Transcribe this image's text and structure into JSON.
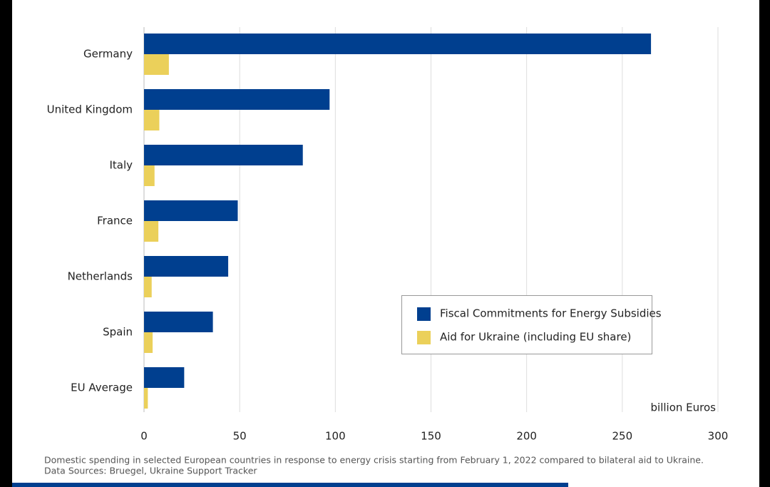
{
  "chart_data": {
    "type": "bar",
    "orientation": "horizontal",
    "categories": [
      "Germany",
      "United Kingdom",
      "Italy",
      "France",
      "Netherlands",
      "Spain",
      "EU Average"
    ],
    "series": [
      {
        "name": "Fiscal Commitments for Energy Subsidies",
        "color": "#003f8f",
        "values": [
          265,
          97,
          83,
          49,
          44,
          36,
          21
        ]
      },
      {
        "name": "Aid for Ukraine (including EU share)",
        "color": "#ebd05a",
        "values": [
          13,
          8,
          5.5,
          7.5,
          4,
          4.5,
          2
        ]
      }
    ],
    "x_label": "billion Euros",
    "xlim": [
      0,
      300
    ],
    "xticks": [
      0,
      50,
      100,
      150,
      200,
      250,
      300
    ],
    "grid": true,
    "notes": [
      "Domestic spending in selected European countries in response to energy crisis starting from February 1, 2022 compared to bilateral aid to Ukraine.",
      "Data Sources: Bruegel, Ukraine Support Tracker"
    ]
  }
}
